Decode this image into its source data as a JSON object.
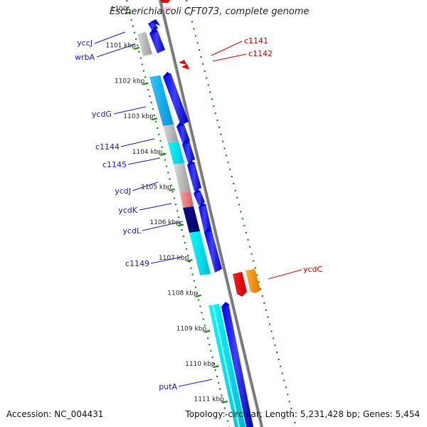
{
  "header": {
    "title": "Escherichia coli CFT073, complete genome"
  },
  "footer": {
    "accession": "Accession: NC_004431",
    "summary": "Topology: circular; Length: 5,231,428 bp; Genes: 5,454"
  },
  "colors": {
    "backbone": "#808080",
    "ruler": "#1e8a1e",
    "left_label": "#1a1aaa",
    "right_label": "#cc0000",
    "forward_gene": "#0000ee",
    "rna_gene": "#00e5ee",
    "unknown_gene": "#bdbdbd",
    "pseudo_gene": "#f08080",
    "dark_gene": "#000080",
    "right_red_gene": "#ee0000",
    "right_orange_gene": "#ff9900"
  },
  "ruler": {
    "ticks": [
      {
        "label": "1100",
        "kb": 1100
      },
      {
        "label": "1101 kbp",
        "kb": 1101
      },
      {
        "label": "1102 kbp",
        "kb": 1102
      },
      {
        "label": "1103 kbp",
        "kb": 1103
      },
      {
        "label": "1104 kbp",
        "kb": 1104
      },
      {
        "label": "1105 kbp",
        "kb": 1105
      },
      {
        "label": "1106 kbp",
        "kb": 1106
      },
      {
        "label": "1107 kbp",
        "kb": 1107
      },
      {
        "label": "1108 kbp",
        "kb": 1108
      },
      {
        "label": "1109 kbp",
        "kb": 1109
      },
      {
        "label": "1110 kbp",
        "kb": 1110
      },
      {
        "label": "1111 kbp",
        "kb": 1111
      }
    ]
  },
  "left_labels": [
    "yccJ",
    "wrbA",
    "ycdG",
    "c1144",
    "c1145",
    "ycdJ",
    "ycdK",
    "ycdL",
    "c1149",
    "putA"
  ],
  "right_labels": [
    "c1141",
    "c1142",
    "ycdC"
  ]
}
